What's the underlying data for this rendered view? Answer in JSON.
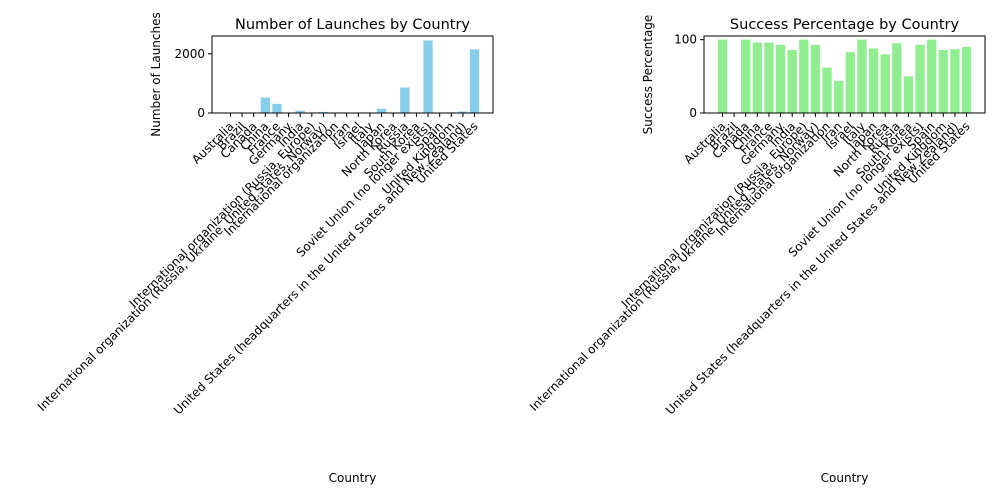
{
  "chart_data": [
    {
      "type": "bar",
      "title": "Number of Launches by Country",
      "xlabel": "Country",
      "ylabel": "Number of Launches",
      "ylim": [
        0,
        2600
      ],
      "yticks": [
        0,
        2000
      ],
      "grid": false,
      "bar_color": "#87CEEB",
      "categories": [
        "Australia",
        "Brazil",
        "Canada",
        "China",
        "France",
        "Germany",
        "India",
        "International organization (Russia, Europe)",
        "International organization (Russia, Ukraine, United States, Norway)",
        "International organization",
        "Iran",
        "Israel",
        "Italy",
        "Japan",
        "North Korea",
        "Russia",
        "South Korea",
        "Soviet Union (no longer exists)",
        "Spain",
        "United Kingdom",
        "United States (headquarters in the United States and New Zealand)",
        "United States"
      ],
      "values": [
        3,
        3,
        4,
        520,
        310,
        3,
        80,
        5,
        36,
        5,
        10,
        9,
        13,
        140,
        5,
        860,
        3,
        2450,
        5,
        20,
        48,
        2150
      ]
    },
    {
      "type": "bar",
      "title": "Success Percentage by Country",
      "xlabel": "Country",
      "ylabel": "Success Percentage",
      "ylim": [
        0,
        105
      ],
      "yticks": [
        0,
        100
      ],
      "grid": false,
      "bar_color": "#90EE90",
      "categories": [
        "Australia",
        "Brazil",
        "Canada",
        "China",
        "France",
        "Germany",
        "India",
        "International organization (Russia, Europe)",
        "International organization (Russia, Ukraine, United States, Norway)",
        "International organization",
        "Iran",
        "Israel",
        "Italy",
        "Japan",
        "North Korea",
        "Russia",
        "South Korea",
        "Soviet Union (no longer exists)",
        "Spain",
        "United Kingdom",
        "United States (headquarters in the United States and New Zealand)",
        "United States"
      ],
      "values": [
        100,
        0,
        100,
        96,
        96,
        93,
        86,
        100,
        93,
        62,
        44,
        83,
        100,
        88,
        80,
        95,
        50,
        93,
        100,
        86,
        87,
        90
      ]
    }
  ]
}
